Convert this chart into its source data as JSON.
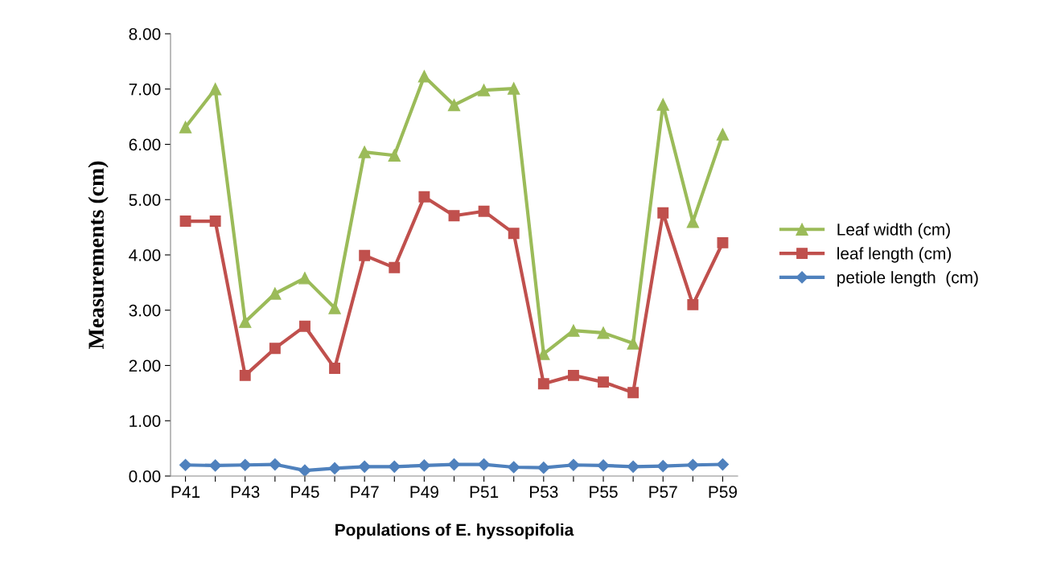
{
  "chart_data": {
    "type": "line",
    "xlabel": "Populations of E. hyssopifolia",
    "ylabel": "Measurements (cm)",
    "categories": [
      "P41",
      null,
      "P43",
      null,
      "P45",
      null,
      "P47",
      null,
      "P49",
      null,
      "P51",
      null,
      "P53",
      null,
      "P55",
      null,
      "P57",
      null,
      "P59"
    ],
    "series": [
      {
        "name": "Leaf width (cm)",
        "color": "#9bbb59",
        "marker": "triangle",
        "values": [
          6.31,
          7.0,
          2.79,
          3.3,
          3.58,
          3.04,
          5.86,
          5.8,
          7.23,
          6.71,
          6.98,
          7.01,
          2.21,
          2.63,
          2.59,
          2.4,
          6.72,
          4.6,
          6.18
        ]
      },
      {
        "name": "leaf length (cm)",
        "color": "#c0504d",
        "marker": "square",
        "values": [
          4.61,
          4.61,
          1.82,
          2.31,
          2.71,
          1.95,
          3.99,
          3.77,
          5.05,
          4.71,
          4.79,
          4.39,
          1.67,
          1.82,
          1.7,
          1.51,
          4.76,
          3.1,
          4.22
        ]
      },
      {
        "name": "petiole length  (cm)",
        "color": "#4f81bd",
        "marker": "diamond",
        "values": [
          0.2,
          0.19,
          0.2,
          0.21,
          0.1,
          0.14,
          0.17,
          0.17,
          0.19,
          0.21,
          0.21,
          0.16,
          0.15,
          0.2,
          0.19,
          0.17,
          0.18,
          0.2,
          0.21
        ]
      }
    ],
    "ylim": [
      0,
      8
    ],
    "yticks": [
      {
        "value": 0,
        "label": "0.00"
      },
      {
        "value": 1,
        "label": "1.00"
      },
      {
        "value": 2,
        "label": "2.00"
      },
      {
        "value": 3,
        "label": "3.00"
      },
      {
        "value": 4,
        "label": "4.00"
      },
      {
        "value": 5,
        "label": "5.00"
      },
      {
        "value": 6,
        "label": "6.00"
      },
      {
        "value": 7,
        "label": "7.00"
      },
      {
        "value": 8,
        "label": "8.00"
      }
    ],
    "grid": false,
    "legend": "right",
    "line_style": "solid"
  }
}
